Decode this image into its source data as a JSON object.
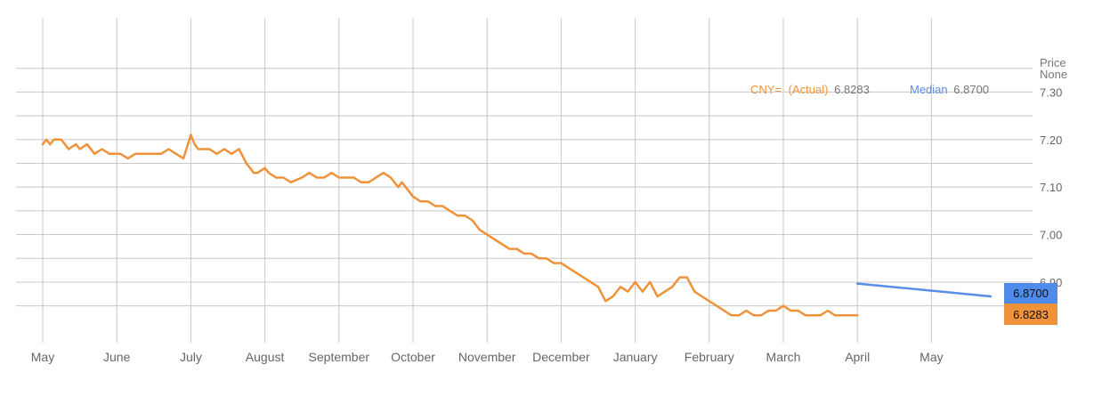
{
  "chart_data": {
    "type": "line",
    "y_axis_title": "Price",
    "y_axis_subtitle": "None",
    "ylim": [
      6.81,
      7.4
    ],
    "y_ticks": [
      7.3,
      7.2,
      7.1,
      7.0,
      6.9
    ],
    "y_tick_labels": [
      "7.30",
      "7.20",
      "7.10",
      "7.00",
      "6.90"
    ],
    "x_tick_labels": [
      "May",
      "June",
      "July",
      "August",
      "September",
      "October",
      "November",
      "December",
      "January",
      "February",
      "March",
      "April",
      "May"
    ],
    "grid": true,
    "legend_position": "top-right",
    "series": [
      {
        "name": "CNY=",
        "label_suffix": "(Actual)",
        "last_value_label": "6.8283",
        "color": "#f0923a",
        "x": [
          0.0,
          0.05,
          0.1,
          0.15,
          0.25,
          0.35,
          0.45,
          0.5,
          0.6,
          0.7,
          0.8,
          0.9,
          0.95,
          1.0,
          1.05,
          1.15,
          1.25,
          1.35,
          1.45,
          1.5,
          1.6,
          1.7,
          1.8,
          1.9,
          2.0,
          2.05,
          2.1,
          2.15,
          2.25,
          2.35,
          2.45,
          2.55,
          2.65,
          2.75,
          2.85,
          2.9,
          3.0,
          3.05,
          3.15,
          3.25,
          3.35,
          3.5,
          3.6,
          3.7,
          3.8,
          3.9,
          4.0,
          4.1,
          4.2,
          4.3,
          4.4,
          4.5,
          4.6,
          4.7,
          4.8,
          4.85,
          4.9,
          5.0,
          5.1,
          5.2,
          5.3,
          5.4,
          5.5,
          5.6,
          5.7,
          5.8,
          5.9,
          6.0,
          6.1,
          6.2,
          6.3,
          6.4,
          6.5,
          6.6,
          6.7,
          6.8,
          6.9,
          7.0,
          7.1,
          7.2,
          7.3,
          7.4,
          7.5,
          7.6,
          7.7,
          7.8,
          7.9,
          8.0,
          8.1,
          8.2,
          8.3,
          8.4,
          8.5,
          8.6,
          8.7,
          8.8,
          8.9,
          9.0,
          9.1,
          9.2,
          9.3,
          9.4,
          9.5,
          9.6,
          9.7,
          9.8,
          9.9,
          10.0,
          10.1,
          10.2,
          10.3,
          10.4,
          10.5,
          10.6,
          10.7,
          10.8,
          10.9,
          11.0
        ],
        "values": [
          7.19,
          7.2,
          7.19,
          7.2,
          7.2,
          7.18,
          7.19,
          7.18,
          7.19,
          7.17,
          7.18,
          7.17,
          7.17,
          7.17,
          7.17,
          7.16,
          7.17,
          7.17,
          7.17,
          7.17,
          7.17,
          7.18,
          7.17,
          7.16,
          7.21,
          7.19,
          7.18,
          7.18,
          7.18,
          7.17,
          7.18,
          7.17,
          7.18,
          7.15,
          7.13,
          7.13,
          7.14,
          7.13,
          7.12,
          7.12,
          7.11,
          7.12,
          7.13,
          7.12,
          7.12,
          7.13,
          7.12,
          7.12,
          7.12,
          7.11,
          7.11,
          7.12,
          7.13,
          7.12,
          7.1,
          7.11,
          7.1,
          7.08,
          7.07,
          7.07,
          7.06,
          7.06,
          7.05,
          7.04,
          7.04,
          7.03,
          7.01,
          7.0,
          6.99,
          6.98,
          6.97,
          6.97,
          6.96,
          6.96,
          6.95,
          6.95,
          6.94,
          6.94,
          6.93,
          6.92,
          6.91,
          6.9,
          6.89,
          6.86,
          6.87,
          6.89,
          6.88,
          6.9,
          6.88,
          6.9,
          6.87,
          6.88,
          6.89,
          6.91,
          6.91,
          6.88,
          6.87,
          6.86,
          6.85,
          6.84,
          6.83,
          6.83,
          6.84,
          6.83,
          6.83,
          6.84,
          6.84,
          6.85,
          6.84,
          6.84,
          6.83,
          6.83,
          6.83,
          6.84,
          6.83,
          6.83,
          6.83,
          6.83
        ]
      },
      {
        "name": "Median",
        "last_value_label": "6.8700",
        "color": "#5a8de6",
        "x": [
          11.0,
          12.8
        ],
        "values": [
          6.897,
          6.87
        ]
      }
    ]
  }
}
